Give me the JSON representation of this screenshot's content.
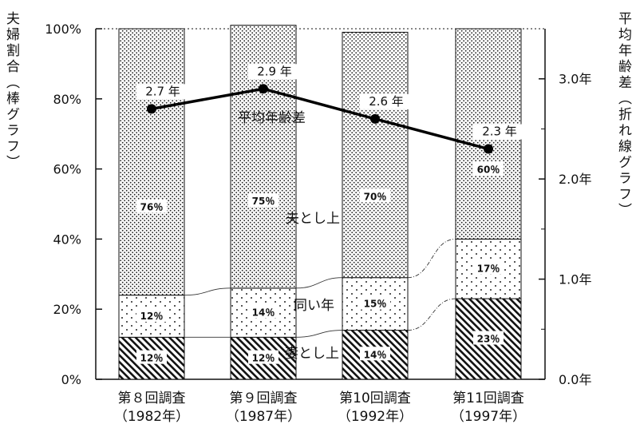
{
  "chart_data": {
    "type": "bar",
    "stacked": true,
    "categories": [
      "第８回調査",
      "第９回調査",
      "第10回調査",
      "第11回調査"
    ],
    "category_years": [
      "（1982年）",
      "（1987年）",
      "（1992年）",
      "（1997年）"
    ],
    "series": [
      {
        "name": "妻とし上",
        "values": [
          12,
          12,
          14,
          23
        ],
        "labels": [
          "12％",
          "12％",
          "14％",
          "23％"
        ],
        "pattern": "hatch"
      },
      {
        "name": "同い年",
        "values": [
          12,
          14,
          15,
          17
        ],
        "labels": [
          "12％",
          "14％",
          "15％",
          "17％"
        ],
        "pattern": "sparse-dots"
      },
      {
        "name": "夫とし上",
        "values": [
          76,
          75,
          70,
          60
        ],
        "labels": [
          "76％",
          "75％",
          "70％",
          "60％"
        ],
        "pattern": "dense-dots"
      }
    ],
    "line_series": {
      "name": "平均年齢差",
      "values": [
        2.7,
        2.9,
        2.6,
        2.3
      ],
      "labels": [
        "2.7 年",
        "2.9 年",
        "2.6 年",
        "2.3 年"
      ]
    },
    "y_left": {
      "label": "夫婦割合（棒グラフ）",
      "ylim": [
        0,
        100
      ],
      "ticks": [
        "0%",
        "20%",
        "40%",
        "60%",
        "80%",
        "100%"
      ]
    },
    "y_right": {
      "label": "平均年齢差（折れ線グラフ）",
      "ylim": [
        0,
        3.5
      ],
      "ticks": [
        "0.0年",
        "1.0年",
        "2.0年",
        "3.0年"
      ]
    },
    "annotations": [
      "夫とし上",
      "同い年",
      "妻とし上",
      "平均年齢差"
    ],
    "legend": "none",
    "grid": false
  }
}
